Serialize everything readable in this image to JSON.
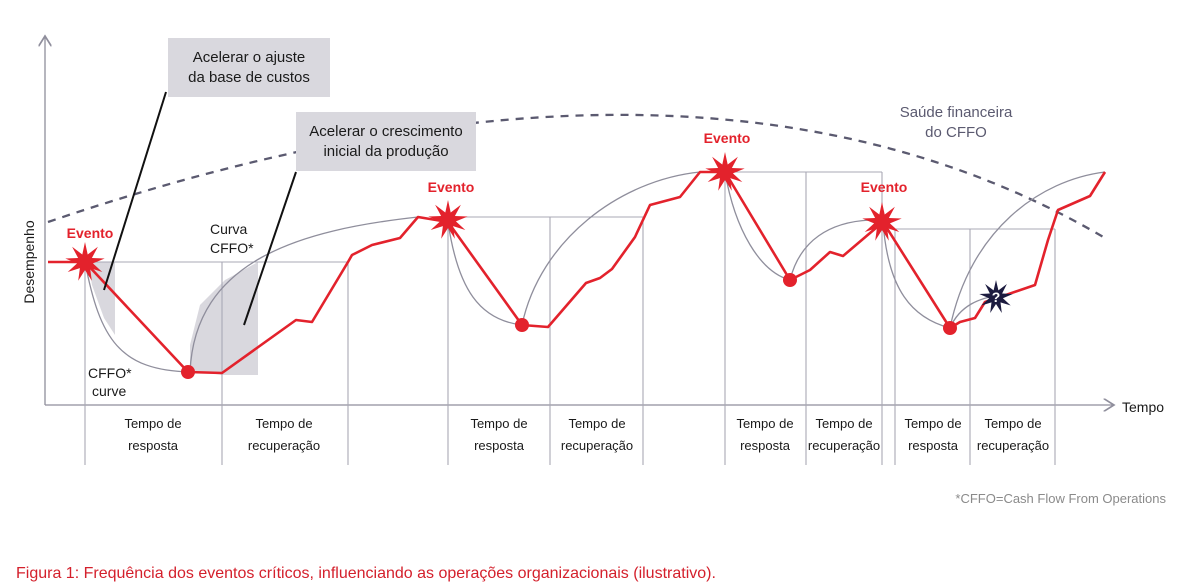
{
  "axes": {
    "y_label": "Desempenho",
    "x_label": "Tempo"
  },
  "events": [
    {
      "label": "Evento"
    },
    {
      "label": "Evento"
    },
    {
      "label": "Evento"
    },
    {
      "label": "Evento"
    }
  ],
  "callouts": {
    "cost_base": [
      "Acelerar o ajuste",
      "da base de custos"
    ],
    "growth": [
      "Acelerar o crescimento",
      "inicial da produção"
    ]
  },
  "annotations": {
    "curva_cffo": [
      "Curva",
      "CFFO*"
    ],
    "cffo_curve": [
      "CFFO*",
      "curve"
    ]
  },
  "financial_health": [
    "Saúde financeira",
    "do CFFO"
  ],
  "phases": [
    {
      "line1": "Tempo de",
      "line2": "resposta"
    },
    {
      "line1": "Tempo de",
      "line2": "recuperação"
    },
    {
      "line1": "Tempo de",
      "line2": "resposta"
    },
    {
      "line1": "Tempo de",
      "line2": "recuperação"
    },
    {
      "line1": "Tempo de",
      "line2": "resposta"
    },
    {
      "line1": "Tempo de",
      "line2": "recuperação"
    },
    {
      "line1": "Tempo de",
      "line2": "resposta"
    },
    {
      "line1": "Tempo de",
      "line2": "recuperação"
    }
  ],
  "unknown_marker": "?",
  "footnote": "*CFFO=Cash Flow From Operations",
  "caption": "Figura 1: Frequência dos eventos críticos, influenciando as operações organizacionais (ilustrativo).",
  "colors": {
    "red": "#e3222c",
    "gray_line": "#8f8e9c",
    "dashed": "#5b5a70",
    "box": "#d9d8de",
    "navy": "#1c1b3f"
  }
}
